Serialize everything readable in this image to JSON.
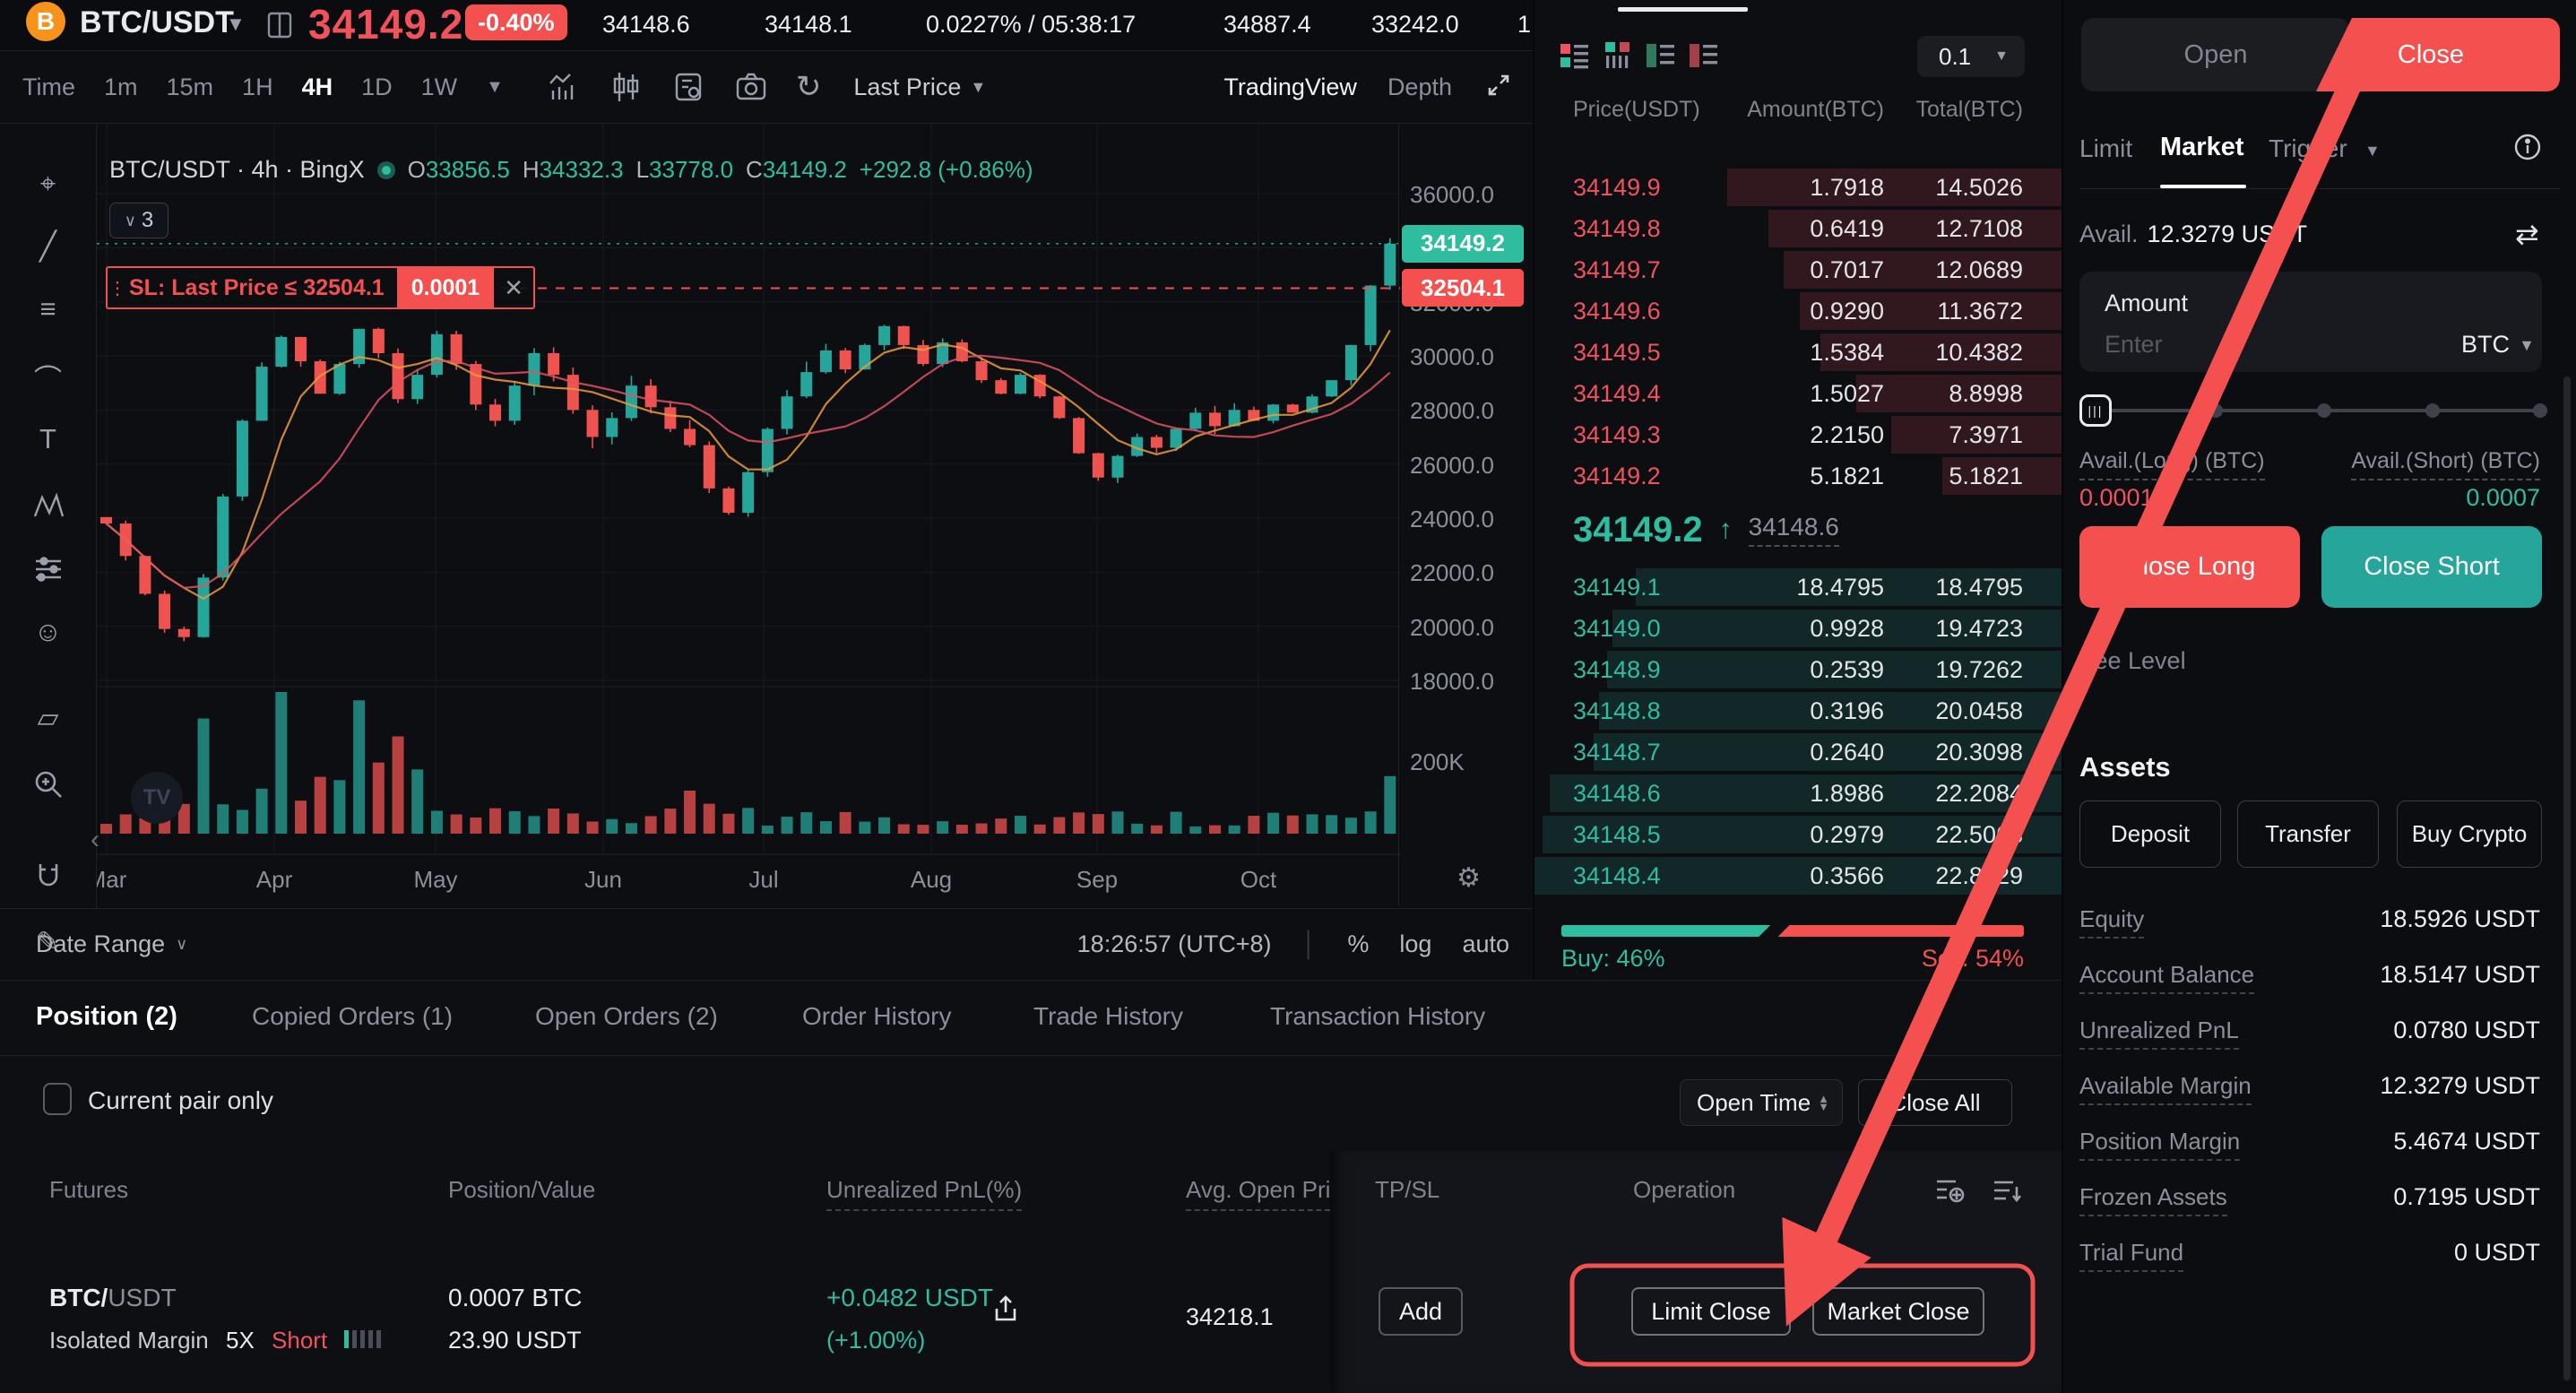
{
  "ticker": {
    "pair": "BTC/USDT",
    "price": "34149.2",
    "change": "-0.40%",
    "stats": [
      "34148.6",
      "34148.1",
      "0.0227% / 05:38:17",
      "34887.4",
      "33242.0",
      "1"
    ]
  },
  "chart": {
    "intervals": [
      "Time",
      "1m",
      "15m",
      "1H",
      "4H",
      "1D",
      "1W"
    ],
    "active_interval": "4H",
    "price_mode": "Last Price",
    "view_tabs": [
      "TradingView",
      "Depth"
    ],
    "legend_title": "BTC/USDT · 4h · BingX",
    "ohlc": {
      "o_label": "O",
      "o": "33856.5",
      "h_label": "H",
      "h": "34332.3",
      "l_label": "L",
      "l": "33778.0",
      "c_label": "C",
      "c": "34149.2",
      "change": "+292.8 (+0.86%)"
    },
    "collapsed_count": "3",
    "sl_line": {
      "label": "SL: Last Price ≤ 32504.1",
      "qty": "0.0001",
      "price": 32504.1
    },
    "last_price_tag": "34149.2",
    "sl_price_tag": "32504.1",
    "volume_tick": "200K",
    "footer": {
      "date_range": "Date Range",
      "clock": "18:26:57 (UTC+8)",
      "percent": "%",
      "log": "log",
      "auto": "auto"
    }
  },
  "chart_data": {
    "type": "candlestick",
    "title": "BTC/USDT · 4h · BingX",
    "x_labels": [
      "Mar",
      "Apr",
      "May",
      "Jun",
      "Jul",
      "Aug",
      "Sep",
      "Oct"
    ],
    "y_ticks": [
      36000,
      34000,
      32000,
      30000,
      28000,
      26000,
      24000,
      22000,
      20000,
      18000
    ],
    "ylim": [
      17500,
      36600
    ],
    "last_price": 34149.2,
    "stop_loss_price": 32504.1,
    "closes": [
      23800,
      22600,
      21200,
      19900,
      19600,
      21800,
      24800,
      27600,
      29600,
      30700,
      29800,
      28600,
      29700,
      31000,
      30100,
      28400,
      29300,
      30800,
      29700,
      28200,
      27600,
      28900,
      30100,
      29300,
      28000,
      27000,
      27700,
      28900,
      28100,
      27300,
      26700,
      25100,
      24200,
      25700,
      27300,
      28500,
      29400,
      30200,
      29500,
      30400,
      31100,
      30400,
      29700,
      30500,
      29800,
      29100,
      28600,
      29300,
      28500,
      27700,
      26400,
      25500,
      26300,
      27000,
      26600,
      27300,
      27900,
      27400,
      28000,
      27600,
      28200,
      27900,
      28500,
      29100,
      30400,
      32600,
      34149.2
    ],
    "note": "closes estimated from pixels; grid on; volume pane below price pane"
  },
  "orderbook": {
    "tick_size": "0.1",
    "headers": [
      "Price(USDT)",
      "Amount(BTC)",
      "Total(BTC)"
    ],
    "asks": [
      [
        "34149.9",
        "1.7918",
        "14.5026"
      ],
      [
        "34149.8",
        "0.6419",
        "12.7108"
      ],
      [
        "34149.7",
        "0.7017",
        "12.0689"
      ],
      [
        "34149.6",
        "0.9290",
        "11.3672"
      ],
      [
        "34149.5",
        "1.5384",
        "10.4382"
      ],
      [
        "34149.4",
        "1.5027",
        "8.8998"
      ],
      [
        "34149.3",
        "2.2150",
        "7.3971"
      ],
      [
        "34149.2",
        "5.1821",
        "5.1821"
      ]
    ],
    "bids": [
      [
        "34149.1",
        "18.4795",
        "18.4795"
      ],
      [
        "34149.0",
        "0.9928",
        "19.4723"
      ],
      [
        "34148.9",
        "0.2539",
        "19.7262"
      ],
      [
        "34148.8",
        "0.3196",
        "20.0458"
      ],
      [
        "34148.7",
        "0.2640",
        "20.3098"
      ],
      [
        "34148.6",
        "1.8986",
        "22.2084"
      ],
      [
        "34148.5",
        "0.2979",
        "22.5063"
      ],
      [
        "34148.4",
        "0.3566",
        "22.8629"
      ]
    ],
    "last_price": "34149.2",
    "index_price": "34148.6",
    "buy_label": "Buy: 46%",
    "sell_label": "Sell: 54%",
    "buy_pct": 46
  },
  "trade_panel": {
    "tabs": [
      "Open",
      "Close"
    ],
    "active_tab": "Close",
    "order_types": [
      "Limit",
      "Market",
      "Trigger"
    ],
    "active_order_type": "Market",
    "avail_label": "Avail.",
    "avail_value": "12.3279 USDT",
    "amount_label": "Amount",
    "amount_placeholder": "Enter",
    "amount_unit": "BTC",
    "avail_long_label": "Avail.(Long) (BTC)",
    "avail_long_value": "0.0001",
    "avail_short_label": "Avail.(Short) (BTC)",
    "avail_short_value": "0.0007",
    "close_long": "Close Long",
    "close_short": "Close Short",
    "fee_level_label": "Fee Level",
    "assets_title": "Assets",
    "asset_buttons": [
      "Deposit",
      "Transfer",
      "Buy Crypto"
    ],
    "asset_rows": [
      {
        "label": "Equity",
        "value": "18.5926 USDT"
      },
      {
        "label": "Account Balance",
        "value": "18.5147 USDT"
      },
      {
        "label": "Unrealized PnL",
        "value": "0.0780 USDT"
      },
      {
        "label": "Available Margin",
        "value": "12.3279 USDT"
      },
      {
        "label": "Position Margin",
        "value": "5.4674 USDT"
      },
      {
        "label": "Frozen Assets",
        "value": "0.7195 USDT"
      },
      {
        "label": "Trial Fund",
        "value": "0 USDT"
      }
    ]
  },
  "positions_panel": {
    "tabs": [
      "Position (2)",
      "Copied Orders (1)",
      "Open Orders (2)",
      "Order History",
      "Trade History",
      "Transaction History"
    ],
    "active_tab": "Position (2)",
    "current_pair_only": "Current pair only",
    "open_time": "Open Time",
    "close_all": "Close All",
    "headers": [
      "Futures",
      "Position/Value",
      "Unrealized PnL(%)",
      "Avg. Open Pri",
      "TP/SL",
      "Operation"
    ],
    "row": {
      "pair_base": "BTC/",
      "pair_quote": "USDT",
      "margin_mode": "Isolated Margin",
      "leverage": "5X",
      "side": "Short",
      "amount": "0.0007 BTC",
      "value": "23.90 USDT",
      "pnl": "+0.0482  USDT",
      "pnl_pct": "(+1.00%)",
      "avg_open_price": "34218.1",
      "tpsl_button": "Add",
      "limit_close": "Limit Close",
      "market_close": "Market Close"
    }
  },
  "colors": {
    "red": "#F3504F",
    "teal": "#2EBD9F",
    "up": "#26A69A",
    "down": "#EF5350"
  }
}
